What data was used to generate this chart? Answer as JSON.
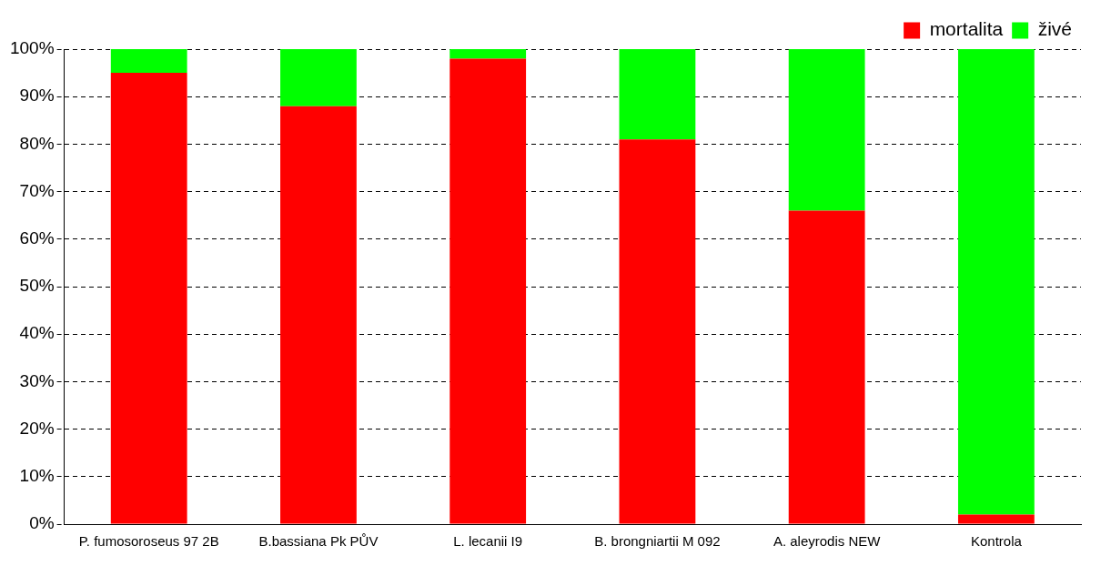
{
  "chart_data": {
    "type": "bar",
    "stacked": true,
    "categories": [
      "P. fumosoroseus 97 2B",
      "B.bassiana Pk PŮV",
      "L. lecanii I9",
      "B. brongniartii M 092",
      "A. aleyrodis NEW",
      "Kontrola"
    ],
    "series": [
      {
        "name": "mortalita",
        "color": "#ff0000",
        "values": [
          95,
          88,
          98,
          81,
          66,
          2
        ]
      },
      {
        "name": "živé",
        "color": "#00ff00",
        "values": [
          5,
          12,
          2,
          19,
          34,
          98
        ]
      }
    ],
    "ylim": [
      0,
      100
    ],
    "yticks": [
      {
        "value": 0,
        "label": "0%"
      },
      {
        "value": 10,
        "label": "10%"
      },
      {
        "value": 20,
        "label": "20%"
      },
      {
        "value": 30,
        "label": "30%"
      },
      {
        "value": 40,
        "label": "40%"
      },
      {
        "value": 50,
        "label": "50%"
      },
      {
        "value": 60,
        "label": "60%"
      },
      {
        "value": 70,
        "label": "70%"
      },
      {
        "value": 80,
        "label": "80%"
      },
      {
        "value": 90,
        "label": "90%"
      },
      {
        "value": 100,
        "label": "100%"
      }
    ],
    "grid": "y",
    "line_style": "dashed",
    "legend": "top right"
  }
}
